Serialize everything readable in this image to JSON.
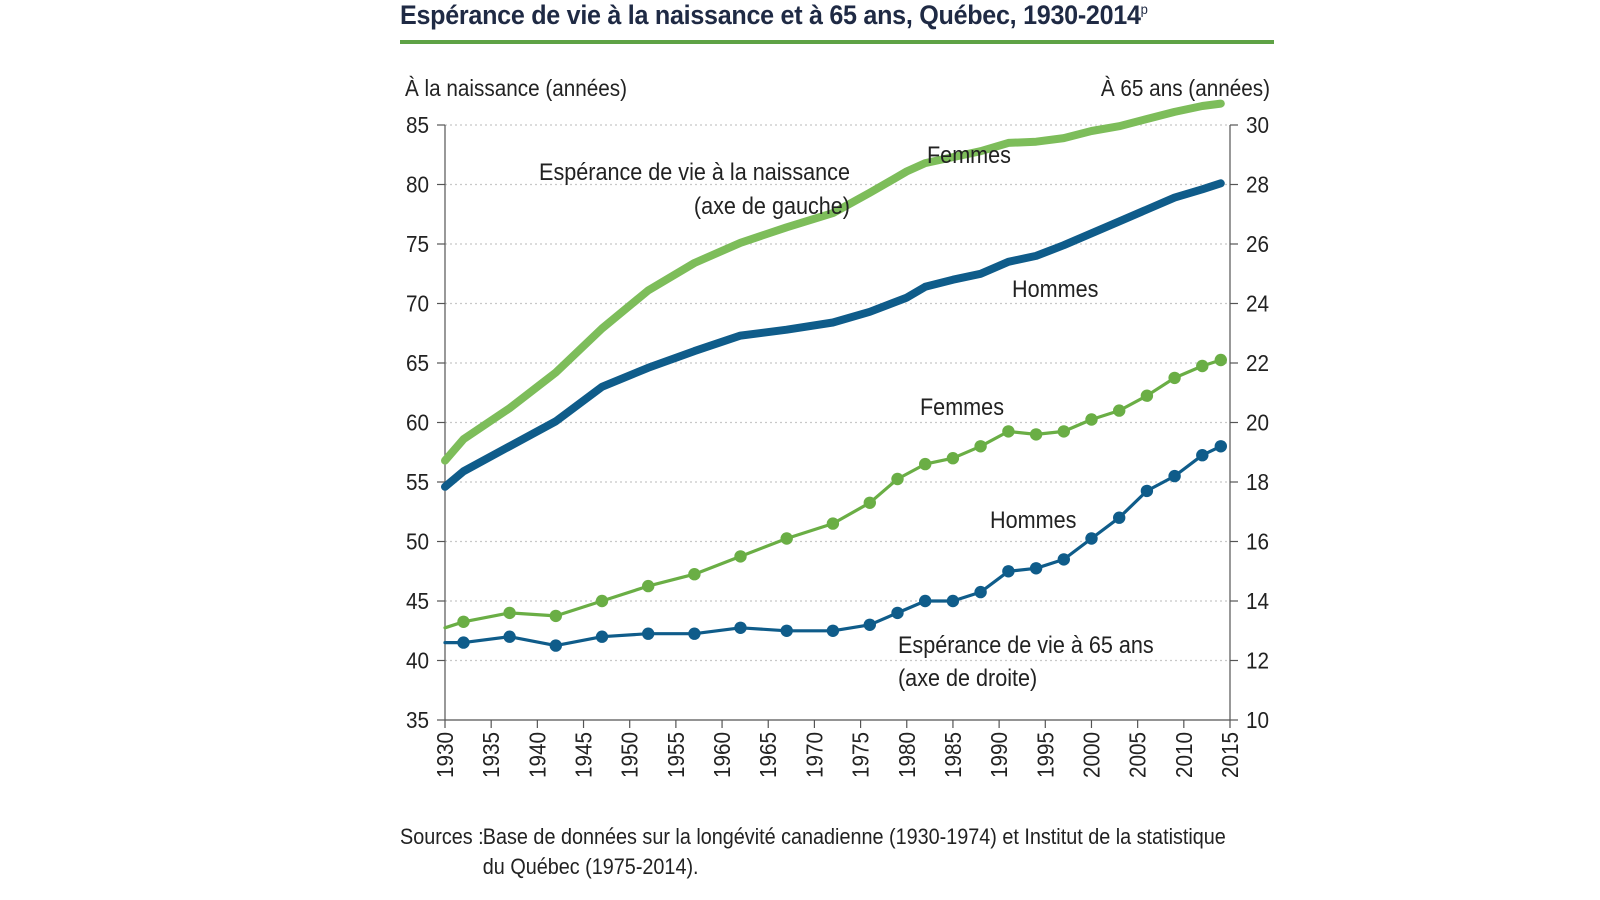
{
  "chart_data": {
    "type": "line",
    "title": "Espérance de vie à la naissance et à 65 ans, Québec, 1930-2014",
    "title_superscript": "p",
    "left_axis": {
      "label": "À la naissance (années)",
      "ylim": [
        35,
        85
      ],
      "ticks": [
        35,
        40,
        45,
        50,
        55,
        60,
        65,
        70,
        75,
        80,
        85
      ]
    },
    "right_axis": {
      "label": "À 65 ans (années)",
      "ylim": [
        10,
        30
      ],
      "ticks": [
        10,
        12,
        14,
        16,
        18,
        20,
        22,
        24,
        26,
        28,
        30
      ]
    },
    "x_axis": {
      "xlim": [
        1930,
        2015
      ],
      "ticks": [
        1930,
        1935,
        1940,
        1945,
        1950,
        1955,
        1960,
        1965,
        1970,
        1975,
        1980,
        1985,
        1990,
        1995,
        2000,
        2005,
        2010,
        2015
      ]
    },
    "grid": "horizontal dotted",
    "series": [
      {
        "group": "birth",
        "axis": "left",
        "color": "#7dbd5a",
        "x": [
          1930,
          1932,
          1937,
          1942,
          1947,
          1952,
          1957,
          1962,
          1967,
          1972,
          1976,
          1980,
          1982,
          1985,
          1988,
          1991,
          1994,
          1997,
          2000,
          2003,
          2006,
          2009,
          2012,
          2014
        ],
        "values": [
          56.8,
          58.6,
          61.2,
          64.2,
          67.9,
          71.1,
          73.4,
          75.1,
          76.4,
          77.6,
          79.3,
          81.1,
          81.8,
          82.3,
          82.8,
          83.5,
          83.6,
          83.9,
          84.5,
          84.9,
          85.5,
          86.1,
          86.6,
          86.8
        ]
      },
      {
        "group": "birth",
        "axis": "left",
        "color": "#0f5c8a",
        "x": [
          1930,
          1932,
          1937,
          1942,
          1947,
          1952,
          1957,
          1962,
          1967,
          1972,
          1976,
          1980,
          1982,
          1985,
          1988,
          1991,
          1994,
          1997,
          2000,
          2003,
          2006,
          2009,
          2012,
          2014
        ],
        "values": [
          54.6,
          55.9,
          58.0,
          60.1,
          63.0,
          64.6,
          66.0,
          67.3,
          67.8,
          68.4,
          69.3,
          70.5,
          71.4,
          72.0,
          72.5,
          73.5,
          74.0,
          74.9,
          75.9,
          76.9,
          77.9,
          78.9,
          79.6,
          80.1
        ]
      },
      {
        "group": "age65",
        "axis": "right",
        "color": "#6aae45",
        "x": [
          1930,
          1932,
          1937,
          1942,
          1947,
          1952,
          1957,
          1962,
          1967,
          1972,
          1976,
          1979,
          1982,
          1985,
          1988,
          1991,
          1994,
          1997,
          2000,
          2003,
          2006,
          2009,
          2012,
          2014
        ],
        "values": [
          13.1,
          13.3,
          13.6,
          13.5,
          14.0,
          14.5,
          14.9,
          15.5,
          16.1,
          16.6,
          17.3,
          18.1,
          18.6,
          18.8,
          19.2,
          19.7,
          19.6,
          19.7,
          20.1,
          20.4,
          20.9,
          21.5,
          21.9,
          22.1
        ]
      },
      {
        "group": "age65",
        "axis": "right",
        "color": "#0f5c8a",
        "x": [
          1930,
          1932,
          1937,
          1942,
          1947,
          1952,
          1957,
          1962,
          1967,
          1972,
          1976,
          1979,
          1982,
          1985,
          1988,
          1991,
          1994,
          1997,
          2000,
          2003,
          2006,
          2009,
          2012,
          2014
        ],
        "values": [
          12.6,
          12.6,
          12.8,
          12.5,
          12.8,
          12.9,
          12.9,
          13.1,
          13.0,
          13.0,
          13.2,
          13.6,
          14.0,
          14.0,
          14.3,
          15.0,
          15.1,
          15.4,
          16.1,
          16.8,
          17.7,
          18.2,
          18.9,
          19.2
        ]
      }
    ],
    "annotations": {
      "birth_line1": "Espérance de vie à la naissance",
      "birth_line2": "(axe de gauche)",
      "femmes_top": "Femmes",
      "hommes_top": "Hommes",
      "femmes_bottom": "Femmes",
      "hommes_bottom": "Hommes",
      "age65_line1": "Espérance de vie à 65 ans",
      "age65_line2": "(axe de droite)"
    }
  },
  "sources": {
    "label": "Sources :",
    "line1": "Base de données sur la longévité canadienne (1930-1974) et Institut de la statistique",
    "line2": "du Québec (1975-2014)."
  },
  "colors": {
    "title_rule": "#5ea245",
    "femmes_birth": "#7dbd5a",
    "femmes_65": "#6aae45",
    "hommes": "#0f5c8a"
  }
}
